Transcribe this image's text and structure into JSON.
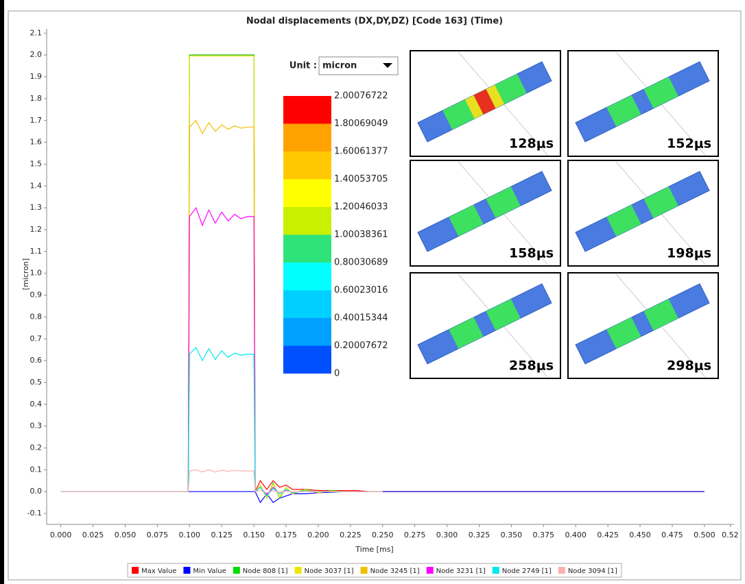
{
  "chart_data": {
    "type": "line",
    "title": "Nodal displacements (DX,DY,DZ) [Code 163] (Time)",
    "x_label": "Time [ms]",
    "y_label": "[micron]",
    "x": [
      0,
      0.099,
      0.1,
      0.105,
      0.11,
      0.115,
      0.12,
      0.125,
      0.13,
      0.135,
      0.14,
      0.145,
      0.15,
      0.151,
      0.155,
      0.16,
      0.165,
      0.17,
      0.175,
      0.18,
      0.19,
      0.2,
      0.21,
      0.22,
      0.23,
      0.24,
      0.25,
      0.5
    ],
    "series": [
      {
        "name": "Max Value",
        "color": "#ff0000",
        "values": [
          0,
          0,
          2,
          2,
          2,
          2,
          2,
          2,
          2,
          2,
          2,
          2,
          2,
          0,
          0.05,
          0.01,
          0.05,
          0.02,
          0.03,
          0.01,
          0.01,
          0.005,
          0.005,
          0.005,
          0.005,
          0,
          0,
          0
        ]
      },
      {
        "name": "Min Value",
        "color": "#0000ff",
        "values": [
          0,
          0,
          0,
          0,
          0,
          0,
          0,
          0,
          0,
          0,
          0,
          0,
          0,
          0,
          -0.05,
          -0.01,
          -0.05,
          -0.03,
          -0.02,
          -0.01,
          -0.01,
          -0.005,
          -0.003,
          0,
          0,
          0,
          0,
          0
        ]
      },
      {
        "name": "Node 808 [1]",
        "color": "#00dd00",
        "values": [
          0,
          0,
          2,
          2,
          2,
          2,
          2,
          2,
          2,
          2,
          2,
          2,
          2,
          0,
          0.03,
          -0.03,
          0.04,
          -0.03,
          0.02,
          -0.01,
          0.01,
          -0.005,
          0.005,
          0,
          0,
          0,
          0,
          null
        ]
      },
      {
        "name": "Node 3037 [1]",
        "color": "#e8e800",
        "values": [
          0,
          0,
          1.995,
          1.995,
          1.995,
          1.995,
          1.995,
          1.995,
          1.995,
          1.995,
          1.995,
          1.995,
          1.995,
          0,
          0.03,
          -0.03,
          0.035,
          -0.025,
          0.02,
          -0.01,
          0.008,
          -0.004,
          0.003,
          0,
          0,
          0,
          0,
          null
        ]
      },
      {
        "name": "Node 3245 [1]",
        "color": "#f0c000",
        "values": [
          0,
          0,
          1.67,
          1.7,
          1.64,
          1.69,
          1.65,
          1.68,
          1.66,
          1.675,
          1.665,
          1.67,
          1.67,
          0,
          0.02,
          -0.02,
          0.02,
          -0.01,
          0.01,
          -0.005,
          0.003,
          0,
          0,
          0,
          0,
          0,
          0,
          null
        ]
      },
      {
        "name": "Node 3231 [1]",
        "color": "#ff00ff",
        "values": [
          0,
          0,
          1.26,
          1.3,
          1.22,
          1.29,
          1.23,
          1.28,
          1.24,
          1.27,
          1.25,
          1.26,
          1.26,
          0,
          0.02,
          -0.015,
          0.02,
          -0.01,
          0.008,
          -0.005,
          0.003,
          0,
          0,
          0,
          0,
          0,
          0,
          null
        ]
      },
      {
        "name": "Node 2749 [1]",
        "color": "#00e8e8",
        "values": [
          0,
          0,
          0.63,
          0.66,
          0.6,
          0.655,
          0.605,
          0.645,
          0.615,
          0.635,
          0.625,
          0.63,
          0.63,
          0,
          0.02,
          -0.02,
          0.015,
          -0.01,
          0.01,
          -0.005,
          0.003,
          0,
          0,
          0,
          0,
          0,
          0,
          null
        ]
      },
      {
        "name": "Node 3094 [1]",
        "color": "#ffafaf",
        "values": [
          0,
          0,
          0.095,
          0.1,
          0.09,
          0.1,
          0.09,
          0.098,
          0.093,
          0.097,
          0.095,
          0.095,
          0.095,
          0,
          0.005,
          -0.005,
          0.004,
          -0.003,
          0.002,
          -0.001,
          0,
          0,
          0,
          0,
          0,
          0,
          0,
          null
        ]
      }
    ],
    "xlim": [
      -0.011,
      0.523
    ],
    "xticks": [
      {
        "value": 0,
        "label": "0.000"
      },
      {
        "value": 0.025,
        "label": "0.025"
      },
      {
        "value": 0.05,
        "label": "0.050"
      },
      {
        "value": 0.075,
        "label": "0.075"
      },
      {
        "value": 0.1,
        "label": "0.100"
      },
      {
        "value": 0.125,
        "label": "0.125"
      },
      {
        "value": 0.15,
        "label": "0.150"
      },
      {
        "value": 0.175,
        "label": "0.175"
      },
      {
        "value": 0.2,
        "label": "0.200"
      },
      {
        "value": 0.225,
        "label": "0.225"
      },
      {
        "value": 0.25,
        "label": "0.250"
      },
      {
        "value": 0.275,
        "label": "0.275"
      },
      {
        "value": 0.3,
        "label": "0.300"
      },
      {
        "value": 0.325,
        "label": "0.325"
      },
      {
        "value": 0.35,
        "label": "0.350"
      },
      {
        "value": 0.375,
        "label": "0.375"
      },
      {
        "value": 0.4,
        "label": "0.400"
      },
      {
        "value": 0.425,
        "label": "0.425"
      },
      {
        "value": 0.45,
        "label": "0.450"
      },
      {
        "value": 0.475,
        "label": "0.475"
      },
      {
        "value": 0.5,
        "label": "0.500"
      },
      0.52
    ],
    "ylim": [
      -0.15,
      2.12
    ],
    "yticks": [
      -0.1,
      {
        "value": 0,
        "label": "0.0"
      },
      0.1,
      0.2,
      0.3,
      0.4,
      0.5,
      0.6,
      0.7,
      0.8,
      0.9,
      {
        "value": 1,
        "label": "1.0"
      },
      1.1,
      1.2,
      1.3,
      1.4,
      1.5,
      1.6,
      1.7,
      1.8,
      1.9,
      {
        "value": 2,
        "label": "2.0"
      },
      2.1
    ],
    "grid": false,
    "unit_label": "Unit :",
    "unit": "micron",
    "colorbar": {
      "levels": [
        2.00076722,
        1.80069049,
        1.60061377,
        1.40053705,
        1.20046033,
        1.00038361,
        0.80030689,
        0.60023016,
        0.40015344,
        0.20007672,
        0
      ],
      "colors": [
        "#ff0000",
        "#ffa200",
        "#ffc800",
        "#ffff00",
        "#c8f000",
        "#2ee37a",
        "#00ffff",
        "#00d0ff",
        "#00a0ff",
        "#0050ff"
      ]
    },
    "insets": [
      {
        "label": "128μs"
      },
      {
        "label": "152μs"
      },
      {
        "label": "158μs"
      },
      {
        "label": "198μs"
      },
      {
        "label": "258μs"
      },
      {
        "label": "298μs"
      }
    ]
  }
}
